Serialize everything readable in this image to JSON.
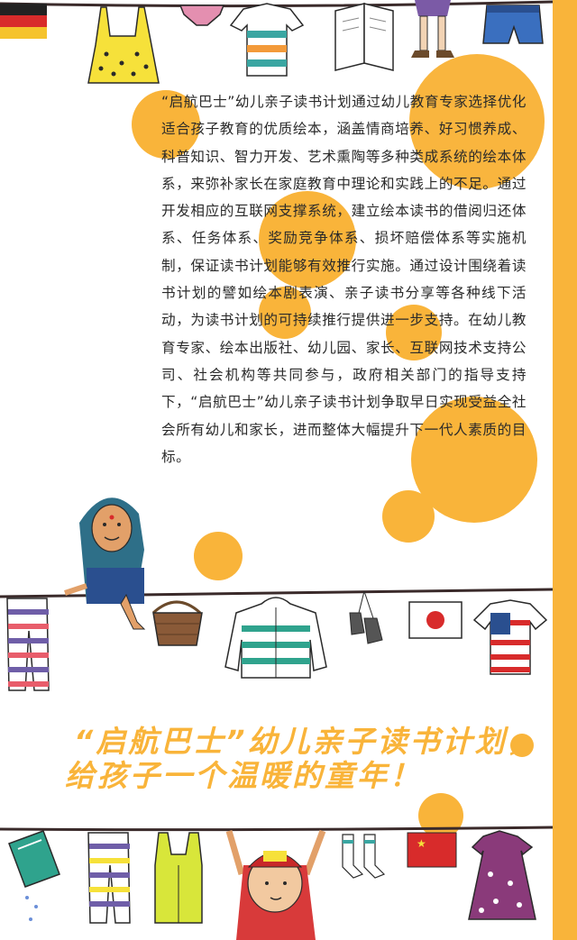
{
  "colors": {
    "accent": "#f9b43a",
    "text": "#2a2a2a"
  },
  "main": {
    "paragraph": "“启航巴士”幼儿亲子读书计划通过幼儿教育专家选择优化适合孩子教育的优质绘本，涵盖情商培养、好习惯养成、科普知识、智力开发、艺术熏陶等多种类成系统的绘本体系，来弥补家长在家庭教育中理论和实践上的不足。通过开发相应的互联网支撑系统，建立绘本读书的借阅归还体系、任务体系、奖励竞争体系、损坏赔偿体系等实施机制，保证读书计划能够有效推行实施。通过设计围绕着读书计划的譬如绘本剧表演、亲子读书分享等各种线下活动，为读书计划的可持续推行提供进一步支持。在幼儿教育专家、绘本出版社、幼儿园、家长、互联网技术支持公司、社会机构等共同参与，政府相关部门的指导支持下，“启航巴士”幼儿亲子读书计划争取早日实现受益全社会所有幼儿和家长，进而整体大幅提升下一代人素质的目标。"
  },
  "slogan": {
    "line1": "“启航巴士”幼儿亲子读书计划，",
    "line2": "给孩子一个温暖的童年！"
  },
  "illustrations": {
    "top_line": [
      "german-flag-icon",
      "polka-dress-icon",
      "underwear-icon",
      "striped-shirt-icon",
      "book-icon",
      "girl-legs-icon",
      "shorts-icon"
    ],
    "middle_line": [
      "striped-pants-icon",
      "woman-sitting-icon",
      "basket-icon",
      "hoodie-icon",
      "shoes-icon",
      "japan-flag-icon",
      "usa-shirt-icon"
    ],
    "bottom_line": [
      "green-book-icon",
      "striped-pants-icon",
      "tank-top-icon",
      "boy-hanging-icon",
      "socks-icon",
      "china-flag-icon",
      "pink-dress-icon"
    ]
  }
}
